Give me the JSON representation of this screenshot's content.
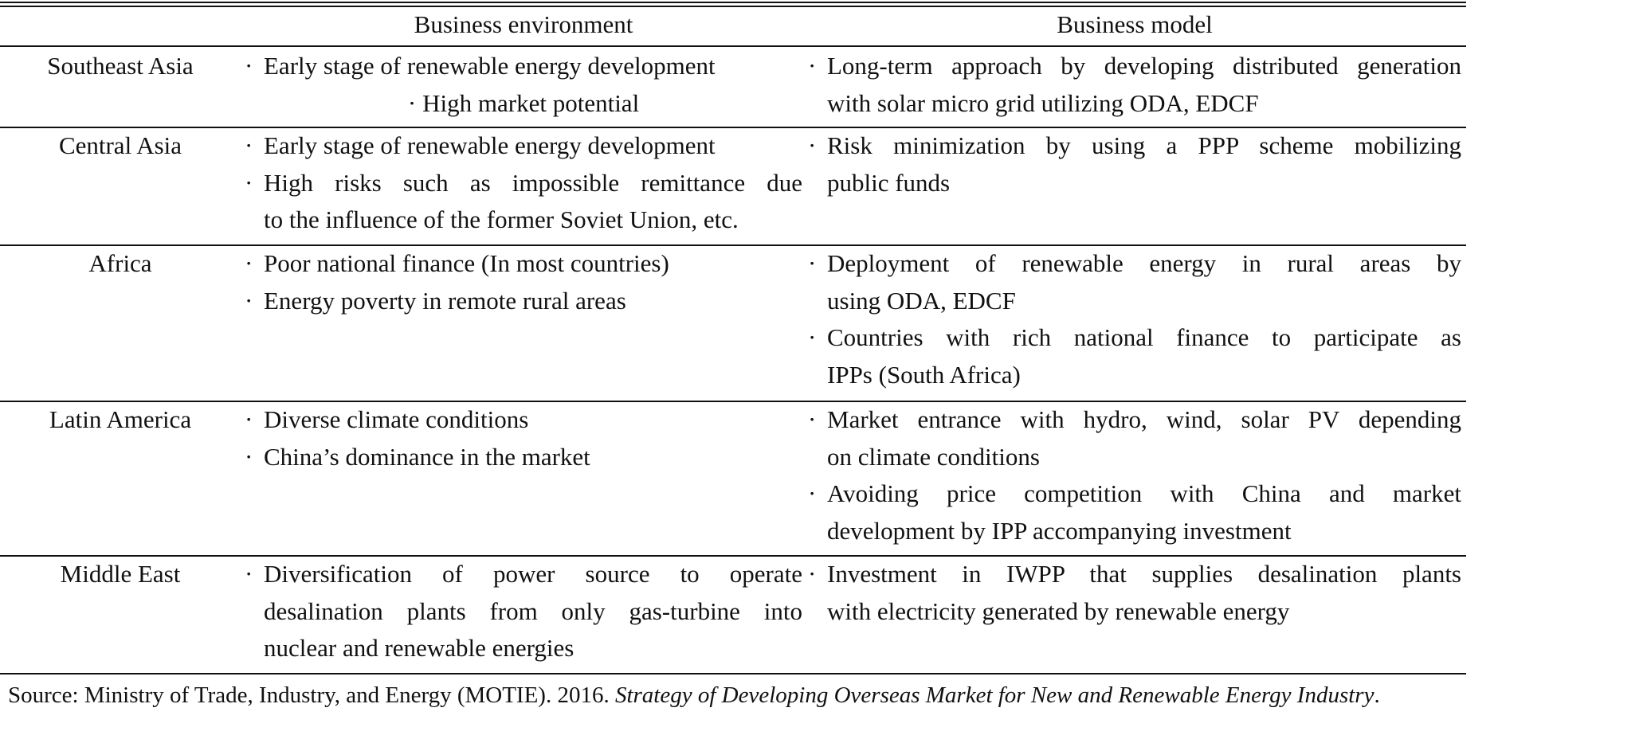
{
  "headers": {
    "region": "",
    "environment": "Business environment",
    "model": "Business model"
  },
  "rows": [
    {
      "region": "Southeast Asia",
      "environment": [
        [
          "Early stage of renewable energy development"
        ],
        [
          "High market potential"
        ]
      ],
      "model": [
        [
          "Long-term approach by developing distributed generation",
          "with solar micro grid utilizing ODA, EDCF"
        ]
      ]
    },
    {
      "region": "Central Asia",
      "environment": [
        [
          "Early stage of renewable energy development"
        ],
        [
          "High risks such as impossible remittance due",
          "to the influence of the former Soviet Union, etc."
        ]
      ],
      "model": [
        [
          "Risk minimization by using a PPP scheme mobilizing",
          "public funds"
        ]
      ]
    },
    {
      "region": "Africa",
      "environment": [
        [
          "Poor national finance (In most countries)"
        ],
        [
          "Energy poverty in remote rural areas"
        ]
      ],
      "model": [
        [
          "Deployment of renewable energy in rural areas by",
          "using ODA, EDCF"
        ],
        [
          "Countries with rich national finance to participate as",
          "IPPs (South Africa)"
        ]
      ]
    },
    {
      "region": "Latin America",
      "environment": [
        [
          "Diverse climate conditions"
        ],
        [
          "China’s dominance in the market"
        ]
      ],
      "model": [
        [
          "Market entrance with hydro, wind, solar PV depending",
          "on climate conditions"
        ],
        [
          "Avoiding price competition with China and market",
          "development by IPP accompanying investment"
        ]
      ]
    },
    {
      "region": "Middle East",
      "environment": [
        [
          "Diversification of power source to operate",
          "desalination plants from only gas-turbine into",
          "nuclear and renewable energies"
        ]
      ],
      "model": [
        [
          "Investment in IWPP that supplies desalination plants",
          "with electricity generated by renewable energy"
        ]
      ]
    }
  ],
  "bullet": "·",
  "source": {
    "prefix": "Source: Ministry of Trade, Industry, and Energy (MOTIE). 2016. ",
    "title": "Strategy of Developing Overseas Market for New and Renewable Energy Industry",
    "suffix": "."
  }
}
